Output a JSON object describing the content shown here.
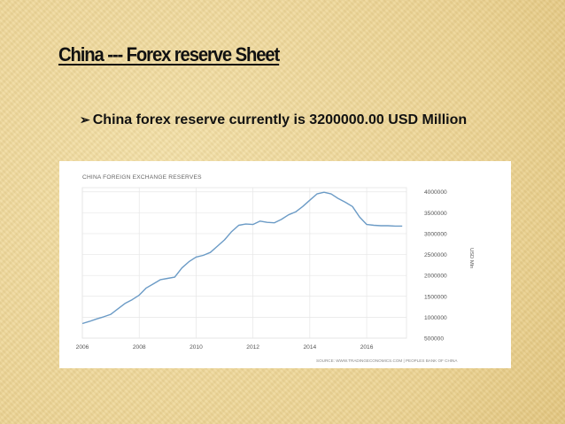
{
  "slide": {
    "title": "China --- Forex reserve Sheet",
    "bullet_arrow": "➢",
    "bullet_text": "China forex reserve currently is 3200000.00 USD Million"
  },
  "chart_data": {
    "type": "line",
    "title": "CHINA FOREIGN EXCHANGE RESERVES",
    "ylabel": "USD Mln",
    "source": "SOURCE: WWW.TRADINGECONOMICS.COM | PEOPLES BANK OF CHINA",
    "xlim": [
      2006,
      2017.4
    ],
    "ylim": [
      500000,
      4100000
    ],
    "x_ticks": [
      "2006",
      "2008",
      "2010",
      "2012",
      "2014",
      "2016"
    ],
    "y_ticks": [
      "500000",
      "1000000",
      "1500000",
      "2000000",
      "2500000",
      "3000000",
      "3500000",
      "4000000"
    ],
    "line_color": "#6b9bc6",
    "grid": true,
    "series": [
      {
        "x": [
          2006.0,
          2006.25,
          2006.5,
          2006.75,
          2007.0,
          2007.25,
          2007.5,
          2007.75,
          2008.0,
          2008.25,
          2008.5,
          2008.75,
          2009.0,
          2009.25,
          2009.5,
          2009.75,
          2010.0,
          2010.25,
          2010.5,
          2010.75,
          2011.0,
          2011.25,
          2011.5,
          2011.75,
          2012.0,
          2012.25,
          2012.5,
          2012.75,
          2013.0,
          2013.25,
          2013.5,
          2013.75,
          2014.0,
          2014.25,
          2014.5,
          2014.75,
          2015.0,
          2015.25,
          2015.5,
          2015.75,
          2016.0,
          2016.25,
          2016.5,
          2016.75,
          2017.0,
          2017.25
        ],
        "y": [
          850000,
          900000,
          960000,
          1010000,
          1070000,
          1200000,
          1330000,
          1420000,
          1530000,
          1700000,
          1800000,
          1900000,
          1930000,
          1960000,
          2180000,
          2330000,
          2440000,
          2480000,
          2550000,
          2700000,
          2850000,
          3050000,
          3200000,
          3230000,
          3220000,
          3300000,
          3270000,
          3260000,
          3340000,
          3450000,
          3520000,
          3650000,
          3800000,
          3950000,
          3990000,
          3950000,
          3840000,
          3750000,
          3650000,
          3400000,
          3220000,
          3200000,
          3190000,
          3190000,
          3180000,
          3180000
        ]
      }
    ]
  }
}
